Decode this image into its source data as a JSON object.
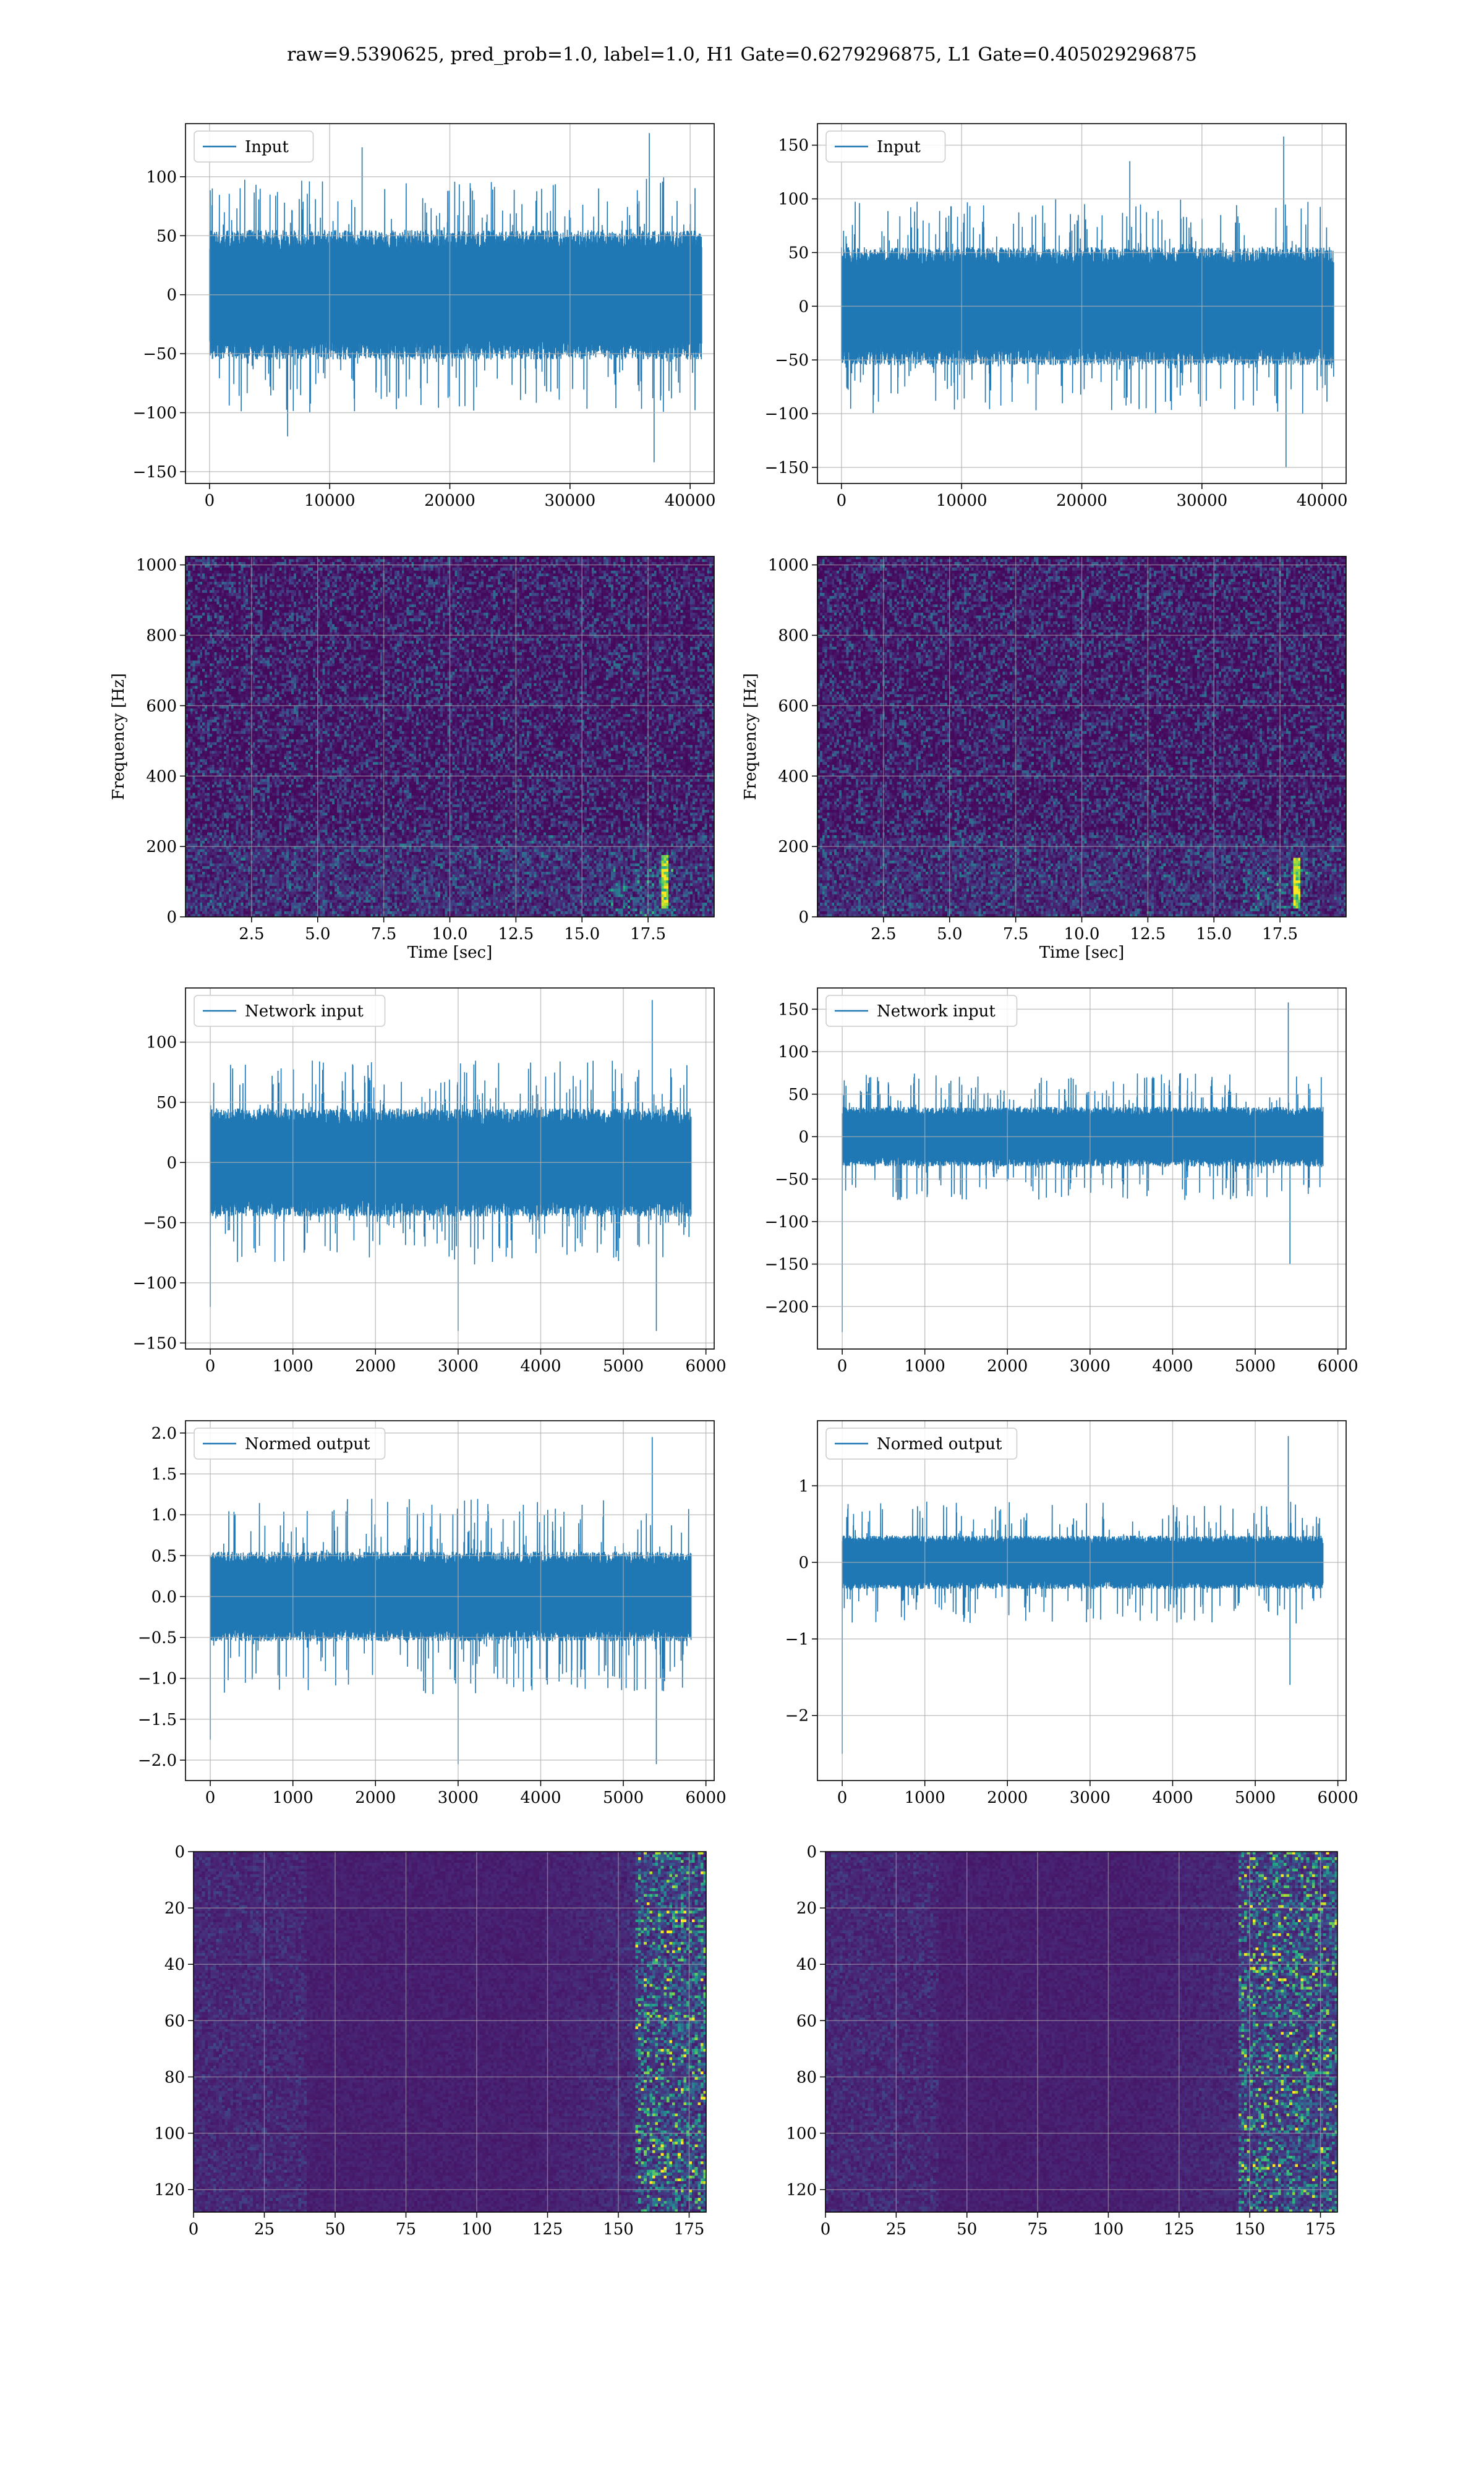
{
  "suptitle": "raw=9.5390625, pred_prob=1.0, label=1.0, H1 Gate=0.6279296875, L1 Gate=0.405029296875",
  "colors": {
    "line": "#1f77b4",
    "grid": "#b0b0b0",
    "viridis": [
      "#440154",
      "#482878",
      "#3e4989",
      "#31688e",
      "#26828e",
      "#1f9e89",
      "#35b779",
      "#6ece58",
      "#b5de2b",
      "#fde725"
    ]
  },
  "chart_data": [
    {
      "id": "r1c1",
      "type": "line",
      "legend": "Input",
      "xlim": [
        -2000,
        42000
      ],
      "ylim": [
        -160,
        145
      ],
      "xticks": [
        0,
        10000,
        20000,
        30000,
        40000
      ],
      "xtick_labels": [
        "0",
        "10000",
        "20000",
        "30000",
        "40000"
      ],
      "yticks": [
        -150,
        -100,
        -50,
        0,
        50,
        100
      ],
      "ytick_labels": [
        "−150",
        "−100",
        "−50",
        "0",
        "50",
        "100"
      ],
      "signal": {
        "x_end": 40960,
        "envelope_lo": [
          [
            0,
            -55
          ],
          [
            40960,
            -55
          ]
        ],
        "envelope_hi": [
          [
            0,
            55
          ],
          [
            40960,
            55
          ]
        ],
        "spike_hi": 100,
        "spike_lo": -100,
        "extremes": [
          [
            36600,
            137
          ],
          [
            37000,
            -142
          ],
          [
            6500,
            -120
          ],
          [
            12700,
            125
          ]
        ]
      }
    },
    {
      "id": "r1c2",
      "type": "line",
      "legend": "Input",
      "xlim": [
        -2000,
        42000
      ],
      "ylim": [
        -165,
        170
      ],
      "xticks": [
        0,
        10000,
        20000,
        30000,
        40000
      ],
      "xtick_labels": [
        "0",
        "10000",
        "20000",
        "30000",
        "40000"
      ],
      "yticks": [
        -150,
        -100,
        -50,
        0,
        50,
        100,
        150
      ],
      "ytick_labels": [
        "−150",
        "−100",
        "−50",
        "0",
        "50",
        "100",
        "150"
      ],
      "signal": {
        "x_end": 40960,
        "envelope_lo": [
          [
            0,
            -55
          ],
          [
            40960,
            -55
          ]
        ],
        "envelope_hi": [
          [
            0,
            55
          ],
          [
            40960,
            55
          ]
        ],
        "spike_hi": 100,
        "spike_lo": -100,
        "extremes": [
          [
            36800,
            158
          ],
          [
            37000,
            -150
          ],
          [
            24000,
            135
          ]
        ]
      }
    },
    {
      "id": "r2c1",
      "type": "heatmap",
      "xlabel": "Time [sec]",
      "ylabel": "Frequency [Hz]",
      "xlim": [
        0,
        20
      ],
      "ylim": [
        0,
        1024
      ],
      "xticks": [
        2.5,
        5,
        7.5,
        10,
        12.5,
        15,
        17.5
      ],
      "xtick_labels": [
        "2.5",
        "5.0",
        "7.5",
        "10.0",
        "12.5",
        "15.0",
        "17.5"
      ],
      "yticks": [
        0,
        200,
        400,
        600,
        800,
        1000
      ],
      "ytick_labels": [
        "0",
        "200",
        "400",
        "600",
        "800",
        "1000"
      ],
      "feature": {
        "x": 18.1,
        "y0": 30,
        "y1": 180
      }
    },
    {
      "id": "r2c2",
      "type": "heatmap",
      "xlabel": "Time [sec]",
      "ylabel": "Frequency [Hz]",
      "xlim": [
        0,
        20
      ],
      "ylim": [
        0,
        1024
      ],
      "xticks": [
        2.5,
        5,
        7.5,
        10,
        12.5,
        15,
        17.5
      ],
      "xtick_labels": [
        "2.5",
        "5.0",
        "7.5",
        "10.0",
        "12.5",
        "15.0",
        "17.5"
      ],
      "yticks": [
        0,
        200,
        400,
        600,
        800,
        1000
      ],
      "ytick_labels": [
        "0",
        "200",
        "400",
        "600",
        "800",
        "1000"
      ],
      "feature": {
        "x": 18.1,
        "y0": 30,
        "y1": 170
      }
    },
    {
      "id": "r3c1",
      "type": "line",
      "legend": "Network input",
      "xlim": [
        -300,
        6100
      ],
      "ylim": [
        -155,
        145
      ],
      "xticks": [
        0,
        1000,
        2000,
        3000,
        4000,
        5000,
        6000
      ],
      "xtick_labels": [
        "0",
        "1000",
        "2000",
        "3000",
        "4000",
        "5000",
        "6000"
      ],
      "yticks": [
        -150,
        -100,
        -50,
        0,
        50,
        100
      ],
      "ytick_labels": [
        "−150",
        "−100",
        "−50",
        "0",
        "50",
        "100"
      ],
      "signal": {
        "x_end": 5820,
        "envelope_lo": [
          [
            0,
            -45
          ],
          [
            5820,
            -45
          ]
        ],
        "envelope_hi": [
          [
            0,
            45
          ],
          [
            5820,
            45
          ]
        ],
        "spike_hi": 85,
        "spike_lo": -85,
        "extremes": [
          [
            5350,
            135
          ],
          [
            5400,
            -140
          ],
          [
            0,
            -120
          ],
          [
            3000,
            -140
          ]
        ]
      }
    },
    {
      "id": "r3c2",
      "type": "line",
      "legend": "Network input",
      "xlim": [
        -300,
        6100
      ],
      "ylim": [
        -250,
        175
      ],
      "xticks": [
        0,
        1000,
        2000,
        3000,
        4000,
        5000,
        6000
      ],
      "xtick_labels": [
        "0",
        "1000",
        "2000",
        "3000",
        "4000",
        "5000",
        "6000"
      ],
      "yticks": [
        -200,
        -150,
        -100,
        -50,
        0,
        50,
        100,
        150
      ],
      "ytick_labels": [
        "−200",
        "−150",
        "−100",
        "−50",
        "0",
        "50",
        "100",
        "150"
      ],
      "signal": {
        "x_end": 5820,
        "envelope_lo": [
          [
            0,
            -35
          ],
          [
            5820,
            -35
          ]
        ],
        "envelope_hi": [
          [
            0,
            35
          ],
          [
            5820,
            35
          ]
        ],
        "spike_hi": 75,
        "spike_lo": -75,
        "extremes": [
          [
            0,
            -230
          ],
          [
            5400,
            158
          ],
          [
            5420,
            -150
          ]
        ]
      }
    },
    {
      "id": "r4c1",
      "type": "line",
      "legend": "Normed output",
      "xlim": [
        -300,
        6100
      ],
      "ylim": [
        -2.25,
        2.15
      ],
      "xticks": [
        0,
        1000,
        2000,
        3000,
        4000,
        5000,
        6000
      ],
      "xtick_labels": [
        "0",
        "1000",
        "2000",
        "3000",
        "4000",
        "5000",
        "6000"
      ],
      "yticks": [
        -2,
        -1.5,
        -1,
        -0.5,
        0,
        0.5,
        1,
        1.5,
        2
      ],
      "ytick_labels": [
        "−2.0",
        "−1.5",
        "−1.0",
        "−0.5",
        "0.0",
        "0.5",
        "1.0",
        "1.5",
        "2.0"
      ],
      "signal": {
        "x_end": 5820,
        "envelope_lo": [
          [
            0,
            -0.55
          ],
          [
            5820,
            -0.55
          ]
        ],
        "envelope_hi": [
          [
            0,
            0.55
          ],
          [
            5820,
            0.55
          ]
        ],
        "spike_hi": 1.2,
        "spike_lo": -1.2,
        "extremes": [
          [
            5350,
            1.95
          ],
          [
            5400,
            -2.05
          ],
          [
            3000,
            -2.05
          ],
          [
            0,
            -1.75
          ]
        ]
      }
    },
    {
      "id": "r4c2",
      "type": "line",
      "legend": "Normed output",
      "xlim": [
        -300,
        6100
      ],
      "ylim": [
        -2.85,
        1.85
      ],
      "xticks": [
        0,
        1000,
        2000,
        3000,
        4000,
        5000,
        6000
      ],
      "xtick_labels": [
        "0",
        "1000",
        "2000",
        "3000",
        "4000",
        "5000",
        "6000"
      ],
      "yticks": [
        -2,
        -1,
        0,
        1
      ],
      "ytick_labels": [
        "−2",
        "−1",
        "0",
        "1"
      ],
      "signal": {
        "x_end": 5820,
        "envelope_lo": [
          [
            0,
            -0.35
          ],
          [
            5820,
            -0.35
          ]
        ],
        "envelope_hi": [
          [
            0,
            0.35
          ],
          [
            5820,
            0.35
          ]
        ],
        "spike_hi": 0.8,
        "spike_lo": -0.8,
        "extremes": [
          [
            0,
            -2.5
          ],
          [
            5400,
            1.65
          ],
          [
            5420,
            -1.6
          ]
        ]
      }
    },
    {
      "id": "r5c1",
      "type": "heatmap",
      "xlim": [
        0,
        181
      ],
      "ylim": [
        128,
        0
      ],
      "xticks": [
        0,
        25,
        50,
        75,
        100,
        125,
        150,
        175
      ],
      "xtick_labels": [
        "0",
        "25",
        "50",
        "75",
        "100",
        "125",
        "150",
        "175"
      ],
      "yticks": [
        0,
        20,
        40,
        60,
        80,
        100,
        120
      ],
      "ytick_labels": [
        "0",
        "20",
        "40",
        "60",
        "80",
        "100",
        "120"
      ],
      "activity_onset": 150
    },
    {
      "id": "r5c2",
      "type": "heatmap",
      "xlim": [
        0,
        181
      ],
      "ylim": [
        128,
        0
      ],
      "xticks": [
        0,
        25,
        50,
        75,
        100,
        125,
        150,
        175
      ],
      "xtick_labels": [
        "0",
        "25",
        "50",
        "75",
        "100",
        "125",
        "150",
        "175"
      ],
      "yticks": [
        0,
        20,
        40,
        60,
        80,
        100,
        120
      ],
      "ytick_labels": [
        "0",
        "20",
        "40",
        "60",
        "80",
        "100",
        "120"
      ],
      "activity_onset": 140
    }
  ]
}
